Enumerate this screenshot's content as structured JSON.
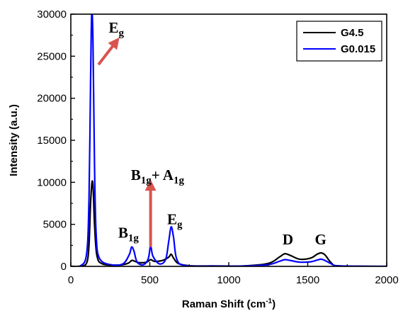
{
  "chart_data": {
    "type": "line",
    "xlabel": "Raman Shift (cm",
    "xlabel_sup": "-1",
    "xlabel_close": ")",
    "ylabel": "Intensity (a.u.)",
    "xlim": [
      0,
      2000
    ],
    "ylim": [
      0,
      30000
    ],
    "x_ticks": [
      0,
      500,
      1000,
      1500,
      2000
    ],
    "y_ticks": [
      0,
      5000,
      10000,
      15000,
      20000,
      25000,
      30000
    ],
    "grid": false,
    "legend_position": "top-right",
    "series": [
      {
        "name": "G4.5",
        "color": "#000000",
        "x": [
          0,
          60,
          100,
          115,
          125,
          135,
          142,
          150,
          165,
          200,
          300,
          360,
          385,
          400,
          430,
          480,
          505,
          530,
          580,
          620,
          635,
          650,
          680,
          750,
          900,
          1100,
          1250,
          1320,
          1355,
          1390,
          1450,
          1520,
          1560,
          1585,
          1610,
          1650,
          1700,
          2000
        ],
        "y": [
          0,
          30,
          400,
          2500,
          7500,
          10100,
          9000,
          5000,
          1300,
          300,
          150,
          350,
          700,
          650,
          450,
          500,
          800,
          600,
          700,
          1100,
          1450,
          1000,
          350,
          80,
          50,
          60,
          350,
          1100,
          1500,
          1300,
          850,
          1000,
          1450,
          1600,
          1350,
          400,
          60,
          0
        ]
      },
      {
        "name": "G0.015",
        "color": "#0000ff",
        "x": [
          0,
          60,
          100,
          115,
          125,
          132,
          140,
          150,
          160,
          180,
          250,
          330,
          370,
          385,
          400,
          420,
          460,
          490,
          505,
          520,
          560,
          600,
          620,
          635,
          650,
          670,
          720,
          900,
          1100,
          1250,
          1320,
          1355,
          1390,
          1450,
          1520,
          1560,
          1585,
          1610,
          1660,
          1700,
          2000
        ],
        "y": [
          0,
          50,
          1500,
          8000,
          22000,
          30000,
          27000,
          12000,
          4000,
          1000,
          200,
          300,
          1400,
          2300,
          1800,
          500,
          200,
          900,
          2400,
          1200,
          300,
          800,
          3000,
          4700,
          3500,
          900,
          100,
          30,
          40,
          200,
          600,
          800,
          700,
          500,
          550,
          750,
          850,
          700,
          200,
          50,
          0
        ]
      }
    ],
    "annotations": [
      {
        "main": "E",
        "sub": "g",
        "x": 240,
        "y": 27800
      },
      {
        "main": "B",
        "sub": "1g",
        "extra_main": "+ A",
        "extra_sub": "1g",
        "x": 380,
        "y": 10300
      },
      {
        "main": "B",
        "sub": "1g",
        "x": 300,
        "y": 3400
      },
      {
        "main": "E",
        "sub": "g",
        "x": 610,
        "y": 5000
      },
      {
        "main": "D",
        "sub": "",
        "x": 1340,
        "y": 2600
      },
      {
        "main": "G",
        "sub": "",
        "x": 1545,
        "y": 2600
      }
    ],
    "arrows": [
      {
        "color": "#d9534f",
        "from": [
          175,
          24000
        ],
        "to": [
          290,
          26800
        ]
      },
      {
        "color": "#d9534f",
        "from": [
          505,
          2300
        ],
        "to": [
          505,
          9800
        ]
      }
    ]
  }
}
